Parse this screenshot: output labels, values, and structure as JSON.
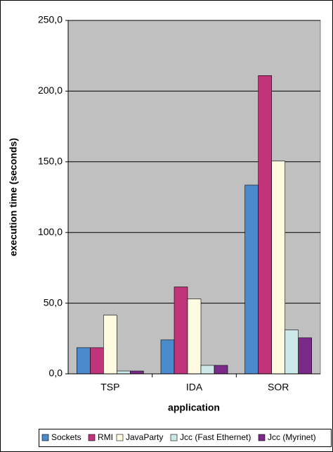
{
  "chart_data": {
    "type": "bar",
    "x_label": "application",
    "y_label": "execution time (seconds)",
    "categories": [
      "TSP",
      "IDA",
      "SOR"
    ],
    "series": [
      {
        "name": "Sockets",
        "color": "#4a8bcb",
        "values": [
          18.5,
          24,
          133.5
        ]
      },
      {
        "name": "RMI",
        "color": "#c0357a",
        "values": [
          18.5,
          61.5,
          211
        ]
      },
      {
        "name": "JavaParty",
        "color": "#fffbe0",
        "values": [
          41.5,
          53,
          150.5
        ]
      },
      {
        "name": "Jcc (Fast Ethernet)",
        "color": "#cce8e8",
        "values": [
          2,
          6,
          31
        ]
      },
      {
        "name": "Jcc (Myrinet)",
        "color": "#7a2b8a",
        "values": [
          2,
          6,
          25.5
        ]
      }
    ],
    "ylim": [
      0,
      250
    ],
    "yticks": [
      {
        "value": 0,
        "label": "0,0"
      },
      {
        "value": 50,
        "label": "50,0"
      },
      {
        "value": 100,
        "label": "100,0"
      },
      {
        "value": 150,
        "label": "150,0"
      },
      {
        "value": 200,
        "label": "200,0"
      },
      {
        "value": 250,
        "label": "250,0"
      }
    ],
    "grid": true,
    "legend": "bottom"
  }
}
